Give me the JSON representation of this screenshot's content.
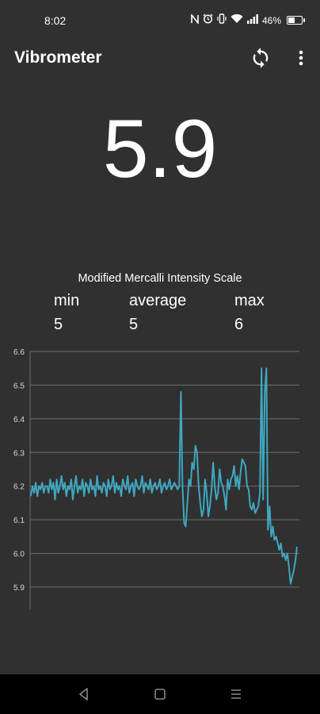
{
  "status_bar": {
    "time": "8:02",
    "battery_percent": "46%",
    "icons": [
      "nfc-icon",
      "alarm-icon",
      "vibrate-icon",
      "wifi-icon",
      "signal-icon",
      "battery-icon"
    ]
  },
  "app_bar": {
    "title": "Vibrometer",
    "actions": [
      "refresh-icon",
      "more-vert-icon"
    ]
  },
  "reading": {
    "value": "5.9"
  },
  "stats": {
    "scale_title": "Modified Mercalli Intensity Scale",
    "min_label": "min",
    "min_value": "5",
    "average_label": "average",
    "average_value": "5",
    "max_label": "max",
    "max_value": "6"
  },
  "colors": {
    "background": "#303030",
    "line": "#3fa7bf",
    "grid": "#6e6e6e",
    "nav_background": "#000000"
  },
  "chart_data": {
    "type": "line",
    "ylim": [
      5.85,
      6.6
    ],
    "yticks": [
      "6.6",
      "6.5",
      "6.4",
      "6.3",
      "6.2",
      "6.1",
      "6.0",
      "5.9"
    ],
    "ytick_values": [
      6.6,
      6.5,
      6.4,
      6.3,
      6.2,
      6.1,
      6.0,
      5.9
    ],
    "grid": "horizontal",
    "series": [
      {
        "values": [
          6.17,
          6.2,
          6.18,
          6.21,
          6.17,
          6.2,
          6.19,
          6.21,
          6.18,
          6.2,
          6.2,
          6.18,
          6.22,
          6.19,
          6.21,
          6.16,
          6.22,
          6.18,
          6.2,
          6.23,
          6.19,
          6.21,
          6.17,
          6.2,
          6.19,
          6.22,
          6.16,
          6.2,
          6.23,
          6.18,
          6.2,
          6.19,
          6.22,
          6.17,
          6.21,
          6.2,
          6.18,
          6.22,
          6.19,
          6.2,
          6.17,
          6.23,
          6.19,
          6.2,
          6.18,
          6.21,
          6.2,
          6.17,
          6.22,
          6.19,
          6.2,
          6.23,
          6.18,
          6.21,
          6.19,
          6.2,
          6.17,
          6.22,
          6.2,
          6.19,
          6.23,
          6.18,
          6.2,
          6.21,
          6.17,
          6.22,
          6.2,
          6.19,
          6.2,
          6.23,
          6.18,
          6.21,
          6.2,
          6.19,
          6.22,
          6.18,
          6.2,
          6.21,
          6.19,
          6.2,
          6.22,
          6.18,
          6.2,
          6.21,
          6.19,
          6.2,
          6.22,
          6.19,
          6.2,
          6.21,
          6.2,
          6.19,
          6.2,
          6.48,
          6.2,
          6.09,
          6.08,
          6.15,
          6.22,
          6.2,
          6.27,
          6.25,
          6.32,
          6.3,
          6.2,
          6.15,
          6.11,
          6.13,
          6.22,
          6.18,
          6.11,
          6.14,
          6.19,
          6.27,
          6.2,
          6.16,
          6.18,
          6.25,
          6.21,
          6.2,
          6.17,
          6.13,
          6.22,
          6.19,
          6.22,
          6.23,
          6.26,
          6.2,
          6.23,
          6.19,
          6.24,
          6.28,
          6.27,
          6.26,
          6.2,
          6.19,
          6.14,
          6.13,
          6.15,
          6.12,
          6.13,
          6.14,
          6.18,
          6.55,
          6.16,
          6.48,
          6.55,
          6.07,
          6.14,
          6.05,
          6.08,
          6.04,
          6.05,
          6.03,
          6.01,
          6.03,
          5.99,
          6.0,
          5.98,
          6.0,
          5.96,
          5.91,
          5.93,
          5.95,
          5.98,
          6.02
        ]
      }
    ]
  }
}
